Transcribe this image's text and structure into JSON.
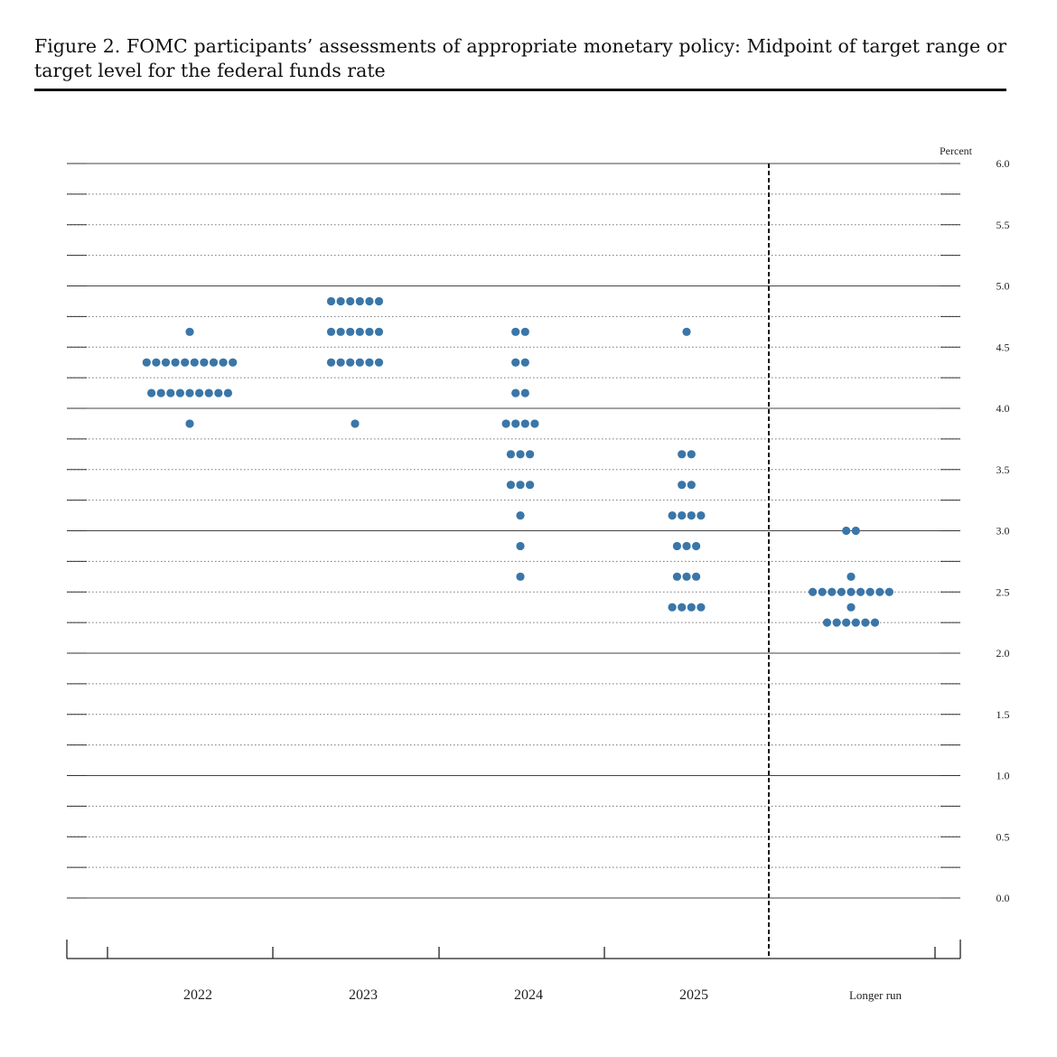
{
  "caption": {
    "text": "Figure 2.  FOMC participants’ assessments of appropriate monetary policy: Midpoint of target range or target level for the federal funds rate"
  },
  "chart_data": {
    "type": "scatter",
    "subtype": "dot-plot",
    "ylabel": "Percent",
    "ylim": [
      0.0,
      6.0
    ],
    "y_ticks": [
      "6.0",
      "5.5",
      "5.0",
      "4.5",
      "4.0",
      "3.5",
      "3.0",
      "2.5",
      "2.0",
      "1.5",
      "1.0",
      "0.5",
      "0.0"
    ],
    "categories": [
      "2022",
      "2023",
      "2024",
      "2025",
      "Longer run"
    ],
    "dot_color": "#3a76a8",
    "grid": "dotted at 0.25, solid at every 1.0",
    "separator": "dashed vertical line before Longer run",
    "dots": [
      {
        "category": "2022",
        "levels": [
          {
            "rate": 4.625,
            "count": 1
          },
          {
            "rate": 4.375,
            "count": 10
          },
          {
            "rate": 4.125,
            "count": 9
          },
          {
            "rate": 3.875,
            "count": 1
          }
        ]
      },
      {
        "category": "2023",
        "levels": [
          {
            "rate": 4.875,
            "count": 6
          },
          {
            "rate": 4.625,
            "count": 6
          },
          {
            "rate": 4.375,
            "count": 6
          },
          {
            "rate": 3.875,
            "count": 1
          }
        ]
      },
      {
        "category": "2024",
        "levels": [
          {
            "rate": 4.625,
            "count": 2
          },
          {
            "rate": 4.375,
            "count": 2
          },
          {
            "rate": 4.125,
            "count": 2
          },
          {
            "rate": 3.875,
            "count": 4
          },
          {
            "rate": 3.625,
            "count": 3
          },
          {
            "rate": 3.375,
            "count": 3
          },
          {
            "rate": 3.125,
            "count": 1
          },
          {
            "rate": 2.875,
            "count": 1
          },
          {
            "rate": 2.625,
            "count": 1
          }
        ]
      },
      {
        "category": "2025",
        "levels": [
          {
            "rate": 4.625,
            "count": 1
          },
          {
            "rate": 3.625,
            "count": 2
          },
          {
            "rate": 3.375,
            "count": 2
          },
          {
            "rate": 3.125,
            "count": 4
          },
          {
            "rate": 2.875,
            "count": 3
          },
          {
            "rate": 2.625,
            "count": 3
          },
          {
            "rate": 2.375,
            "count": 4
          }
        ]
      },
      {
        "category": "Longer run",
        "levels": [
          {
            "rate": 3.0,
            "count": 2
          },
          {
            "rate": 2.625,
            "count": 1
          },
          {
            "rate": 2.5,
            "count": 9
          },
          {
            "rate": 2.375,
            "count": 1
          },
          {
            "rate": 2.25,
            "count": 6
          }
        ]
      }
    ]
  }
}
